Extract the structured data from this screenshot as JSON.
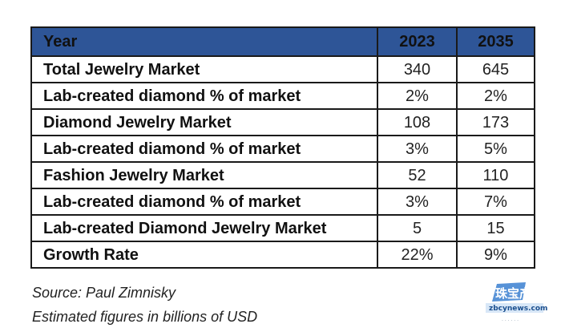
{
  "chart_data": {
    "type": "table",
    "columns": [
      "Year",
      "2023",
      "2035"
    ],
    "rows": [
      {
        "label": "Total Jewelry Market",
        "values": [
          "340",
          "645"
        ]
      },
      {
        "label": "Lab-created diamond % of market",
        "values": [
          "2%",
          "2%"
        ]
      },
      {
        "label": "Diamond Jewelry Market",
        "values": [
          "108",
          "173"
        ]
      },
      {
        "label": "Lab-created diamond % of market",
        "values": [
          "3%",
          "5%"
        ]
      },
      {
        "label": "Fashion Jewelry Market",
        "values": [
          "52",
          "110"
        ]
      },
      {
        "label": "Lab-created diamond % of market",
        "values": [
          "3%",
          "7%"
        ]
      },
      {
        "label": "Lab-created Diamond Jewelry Market",
        "values": [
          "5",
          "15"
        ]
      },
      {
        "label": "Growth Rate",
        "values": [
          "22%",
          "9%"
        ]
      }
    ]
  },
  "notes": {
    "source": "Source: Paul Zimnisky",
    "units": "Estimated figures in billions of USD"
  },
  "watermark": {
    "text": "珠宝产业网",
    "url_text": "zbcynews.com"
  },
  "colors": {
    "header_bg": "#2e5597",
    "border": "#1a1a1a"
  }
}
